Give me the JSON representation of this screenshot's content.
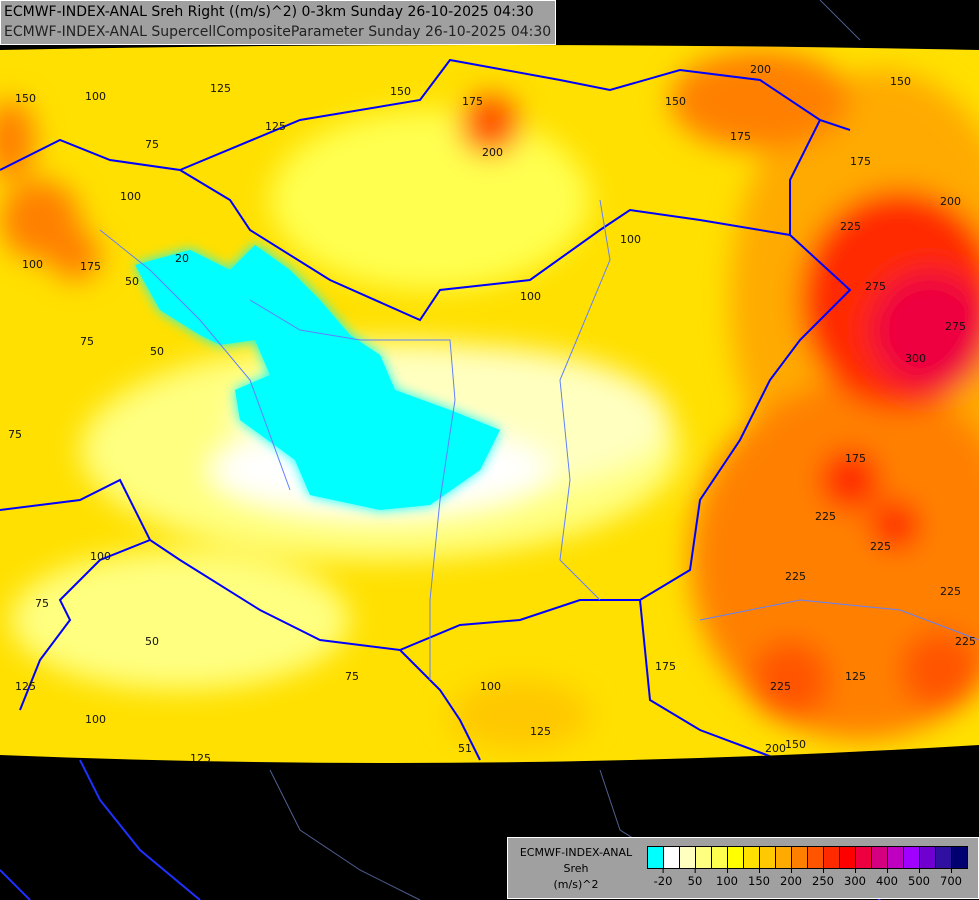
{
  "title": {
    "line1": "ECMWF-INDEX-ANAL Sreh Right ((m/s)^2) 0-3km Sunday 26-10-2025 04:30",
    "line2": "ECMWF-INDEX-ANAL SupercellCompositeParameter Sunday 26-10-2025 04:30"
  },
  "legend": {
    "model": "ECMWF-INDEX-ANAL",
    "variable": "Sreh",
    "unit": "(m/s)^2",
    "colors": [
      "#00ffff",
      "#ffffff",
      "#ffffc0",
      "#ffff80",
      "#ffff50",
      "#ffff00",
      "#ffe000",
      "#ffc800",
      "#ffaa00",
      "#ff8000",
      "#ff5500",
      "#ff2a00",
      "#ff0000",
      "#ee0040",
      "#d40080",
      "#c000c0",
      "#a000ff",
      "#7000d0",
      "#3010a0",
      "#000070"
    ],
    "tick_labels": [
      "-20",
      "50",
      "100",
      "150",
      "200",
      "250",
      "300",
      "400",
      "500",
      "700"
    ]
  },
  "contour_labels": [
    "150",
    "100",
    "125",
    "175",
    "200",
    "150",
    "200",
    "150",
    "175",
    "175",
    "150",
    "125",
    "75",
    "100",
    "175",
    "100",
    "20",
    "50",
    "75",
    "50",
    "75",
    "100",
    "100",
    "275",
    "275",
    "300",
    "200",
    "225",
    "175",
    "225",
    "225",
    "225",
    "225",
    "225",
    "225",
    "175",
    "125",
    "200",
    "150",
    "75",
    "100",
    "125",
    "100",
    "75",
    "50",
    "125",
    "100",
    "125",
    "51"
  ],
  "colors": {
    "border": "#0000ff",
    "river": "#6080ff",
    "background": "#000000"
  }
}
